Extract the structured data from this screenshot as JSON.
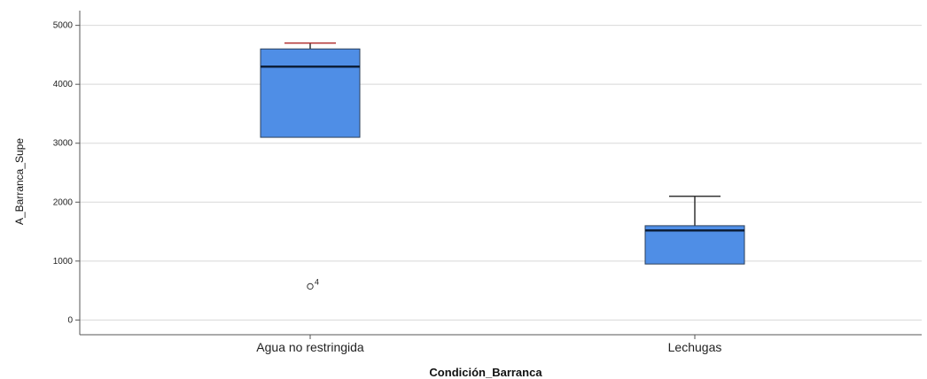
{
  "chart_data": {
    "type": "boxplot",
    "xlabel": "Condición_Barranca",
    "ylabel": "A_Barranca_Supe",
    "ylim": [
      -250,
      5250
    ],
    "yticks": [
      0,
      1000,
      2000,
      3000,
      4000,
      5000
    ],
    "grid": true,
    "colors": {
      "box_fill": "#4f8ee6",
      "box_stroke": "#2b3f5a",
      "median": "#0d1f3a",
      "whisker": "#333333",
      "whisker_cap_top_first": "#b03030",
      "grid": "#d8d8d8",
      "axis": "#555555"
    },
    "categories": [
      "Agua no restringida",
      "Lechugas"
    ],
    "boxes": [
      {
        "category": "Agua no restringida",
        "whisker_low": 3100,
        "q1": 3100,
        "median": 4300,
        "q3": 4600,
        "whisker_high": 4700,
        "outliers": [
          {
            "value": 570,
            "label": "4"
          }
        ]
      },
      {
        "category": "Lechugas",
        "whisker_low": 950,
        "q1": 950,
        "median": 1520,
        "q3": 1600,
        "whisker_high": 2100,
        "outliers": []
      }
    ]
  }
}
